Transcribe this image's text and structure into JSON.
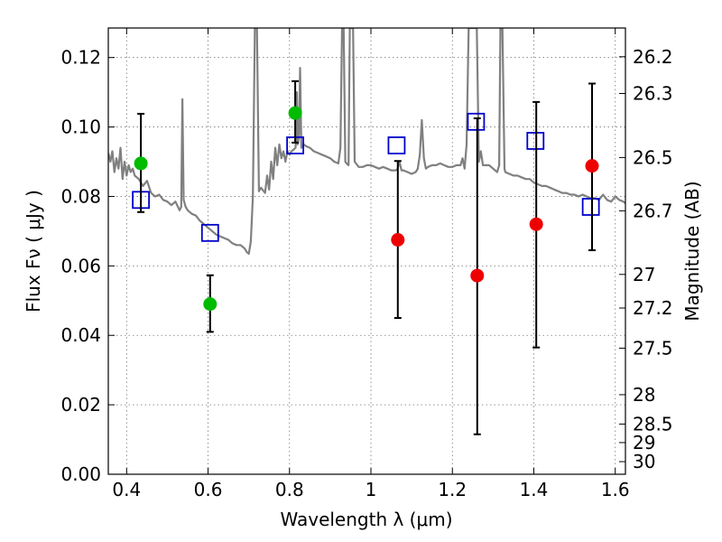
{
  "chart_data": {
    "type": "scatter",
    "xlabel": "Wavelength  λ (μm)",
    "ylabel": "Flux  Fν  ( μJy )",
    "ylabel_right": "Magnitude (AB)",
    "xlim": [
      0.355,
      1.625
    ],
    "ylim": [
      0.0,
      0.1285
    ],
    "x_ticks": [
      0.4,
      0.6,
      0.8,
      1.0,
      1.2,
      1.4,
      1.6
    ],
    "x_tick_labels": [
      "0.4",
      "0.6",
      "0.8",
      "1",
      "1.2",
      "1.4",
      "1.6"
    ],
    "y_ticks": [
      0.0,
      0.02,
      0.04,
      0.06,
      0.08,
      0.1,
      0.12
    ],
    "y_tick_labels": [
      "0.00",
      "0.02",
      "0.04",
      "0.06",
      "0.08",
      "0.10",
      "0.12"
    ],
    "mag_ticks": [
      {
        "mag": 26.2,
        "label": "26.2"
      },
      {
        "mag": 26.3,
        "label": "26.3"
      },
      {
        "mag": 26.5,
        "label": "26.5"
      },
      {
        "mag": 26.7,
        "label": "26.7"
      },
      {
        "mag": 27.0,
        "label": "27"
      },
      {
        "mag": 27.2,
        "label": "27.2"
      },
      {
        "mag": 27.5,
        "label": "27.5"
      },
      {
        "mag": 28.0,
        "label": "28"
      },
      {
        "mag": 28.5,
        "label": "28.5"
      },
      {
        "mag": 29.0,
        "label": "29"
      },
      {
        "mag": 30.0,
        "label": "30"
      }
    ],
    "grid": true,
    "series": [
      {
        "kind": "line",
        "color": "#808080",
        "points": [
          [
            0.355,
            0.0925
          ],
          [
            0.36,
            0.09
          ],
          [
            0.365,
            0.093
          ],
          [
            0.37,
            0.087
          ],
          [
            0.375,
            0.091
          ],
          [
            0.38,
            0.088
          ],
          [
            0.385,
            0.094
          ],
          [
            0.39,
            0.085
          ],
          [
            0.395,
            0.09
          ],
          [
            0.4,
            0.086
          ],
          [
            0.405,
            0.089
          ],
          [
            0.41,
            0.087
          ],
          [
            0.415,
            0.088
          ],
          [
            0.42,
            0.086
          ],
          [
            0.43,
            0.085
          ],
          [
            0.44,
            0.083
          ],
          [
            0.45,
            0.0845
          ],
          [
            0.46,
            0.081
          ],
          [
            0.47,
            0.08
          ],
          [
            0.48,
            0.0805
          ],
          [
            0.49,
            0.079
          ],
          [
            0.5,
            0.0785
          ],
          [
            0.51,
            0.0775
          ],
          [
            0.52,
            0.0785
          ],
          [
            0.53,
            0.076
          ],
          [
            0.534,
            0.077
          ],
          [
            0.537,
            0.108
          ],
          [
            0.54,
            0.079
          ],
          [
            0.545,
            0.077
          ],
          [
            0.55,
            0.076
          ],
          [
            0.56,
            0.075
          ],
          [
            0.57,
            0.0745
          ],
          [
            0.58,
            0.073
          ],
          [
            0.59,
            0.072
          ],
          [
            0.6,
            0.071
          ],
          [
            0.61,
            0.07
          ],
          [
            0.62,
            0.069
          ],
          [
            0.63,
            0.0685
          ],
          [
            0.64,
            0.068
          ],
          [
            0.65,
            0.0675
          ],
          [
            0.66,
            0.0665
          ],
          [
            0.67,
            0.066
          ],
          [
            0.68,
            0.066
          ],
          [
            0.69,
            0.065
          ],
          [
            0.695,
            0.064
          ],
          [
            0.7,
            0.0635
          ],
          [
            0.705,
            0.067
          ],
          [
            0.71,
            0.08
          ],
          [
            0.715,
            0.1285
          ],
          [
            0.72,
            0.1285
          ],
          [
            0.725,
            0.0815
          ],
          [
            0.73,
            0.0825
          ],
          [
            0.74,
            0.081
          ],
          [
            0.745,
            0.086
          ],
          [
            0.75,
            0.082
          ],
          [
            0.755,
            0.09
          ],
          [
            0.76,
            0.085
          ],
          [
            0.765,
            0.094
          ],
          [
            0.77,
            0.089
          ],
          [
            0.775,
            0.095
          ],
          [
            0.78,
            0.091
          ],
          [
            0.785,
            0.093
          ],
          [
            0.79,
            0.09
          ],
          [
            0.795,
            0.093
          ],
          [
            0.8,
            0.092
          ],
          [
            0.805,
            0.093
          ],
          [
            0.81,
            0.0935
          ],
          [
            0.815,
            0.094
          ],
          [
            0.818,
            0.11
          ],
          [
            0.82,
            0.095
          ],
          [
            0.823,
            0.097
          ],
          [
            0.826,
            0.117
          ],
          [
            0.829,
            0.094
          ],
          [
            0.835,
            0.095
          ],
          [
            0.84,
            0.0945
          ],
          [
            0.85,
            0.094
          ],
          [
            0.86,
            0.093
          ],
          [
            0.87,
            0.0925
          ],
          [
            0.88,
            0.092
          ],
          [
            0.89,
            0.0915
          ],
          [
            0.9,
            0.091
          ],
          [
            0.91,
            0.09
          ],
          [
            0.92,
            0.0895
          ],
          [
            0.925,
            0.094
          ],
          [
            0.929,
            0.1285
          ],
          [
            0.933,
            0.1285
          ],
          [
            0.937,
            0.09
          ],
          [
            0.94,
            0.0895
          ],
          [
            0.945,
            0.089
          ],
          [
            0.948,
            0.1285
          ],
          [
            0.952,
            0.1285
          ],
          [
            0.956,
            0.1285
          ],
          [
            0.96,
            0.09
          ],
          [
            0.97,
            0.0885
          ],
          [
            0.98,
            0.0885
          ],
          [
            0.99,
            0.089
          ],
          [
            1.0,
            0.089
          ],
          [
            1.01,
            0.0885
          ],
          [
            1.02,
            0.088
          ],
          [
            1.03,
            0.0885
          ],
          [
            1.04,
            0.088
          ],
          [
            1.05,
            0.0875
          ],
          [
            1.06,
            0.0875
          ],
          [
            1.065,
            0.0878
          ],
          [
            1.07,
            0.09
          ],
          [
            1.075,
            0.0875
          ],
          [
            1.08,
            0.0875
          ],
          [
            1.09,
            0.087
          ],
          [
            1.1,
            0.0865
          ],
          [
            1.11,
            0.087
          ],
          [
            1.115,
            0.088
          ],
          [
            1.12,
            0.092
          ],
          [
            1.125,
            0.102
          ],
          [
            1.13,
            0.091
          ],
          [
            1.135,
            0.088
          ],
          [
            1.14,
            0.0885
          ],
          [
            1.15,
            0.089
          ],
          [
            1.16,
            0.089
          ],
          [
            1.17,
            0.0895
          ],
          [
            1.18,
            0.089
          ],
          [
            1.19,
            0.0885
          ],
          [
            1.2,
            0.0885
          ],
          [
            1.21,
            0.089
          ],
          [
            1.22,
            0.089
          ],
          [
            1.225,
            0.091
          ],
          [
            1.23,
            0.088
          ],
          [
            1.235,
            0.095
          ],
          [
            1.24,
            0.1285
          ],
          [
            1.25,
            0.1285
          ],
          [
            1.255,
            0.1285
          ],
          [
            1.26,
            0.1285
          ],
          [
            1.265,
            0.09
          ],
          [
            1.27,
            0.093
          ],
          [
            1.275,
            0.089
          ],
          [
            1.28,
            0.089
          ],
          [
            1.29,
            0.089
          ],
          [
            1.3,
            0.088
          ],
          [
            1.31,
            0.087
          ],
          [
            1.315,
            0.089
          ],
          [
            1.318,
            0.1285
          ],
          [
            1.323,
            0.1285
          ],
          [
            1.328,
            0.088
          ],
          [
            1.33,
            0.087
          ],
          [
            1.34,
            0.0865
          ],
          [
            1.35,
            0.086
          ],
          [
            1.36,
            0.086
          ],
          [
            1.37,
            0.0855
          ],
          [
            1.38,
            0.085
          ],
          [
            1.39,
            0.085
          ],
          [
            1.4,
            0.084
          ],
          [
            1.41,
            0.0835
          ],
          [
            1.42,
            0.083
          ],
          [
            1.43,
            0.083
          ],
          [
            1.44,
            0.0825
          ],
          [
            1.45,
            0.082
          ],
          [
            1.46,
            0.0815
          ],
          [
            1.47,
            0.081
          ],
          [
            1.48,
            0.081
          ],
          [
            1.49,
            0.0805
          ],
          [
            1.5,
            0.0805
          ],
          [
            1.51,
            0.08
          ],
          [
            1.52,
            0.0805
          ],
          [
            1.53,
            0.08
          ],
          [
            1.54,
            0.0795
          ],
          [
            1.55,
            0.0795
          ],
          [
            1.56,
            0.079
          ],
          [
            1.57,
            0.0805
          ],
          [
            1.58,
            0.079
          ],
          [
            1.59,
            0.0785
          ],
          [
            1.6,
            0.08
          ],
          [
            1.61,
            0.079
          ],
          [
            1.62,
            0.0785
          ],
          [
            1.625,
            0.078
          ]
        ]
      },
      {
        "kind": "open-square",
        "color": "#0000cc",
        "points": [
          {
            "x": 0.435,
            "y": 0.079
          },
          {
            "x": 0.605,
            "y": 0.0695
          },
          {
            "x": 0.814,
            "y": 0.0947
          },
          {
            "x": 1.063,
            "y": 0.0947
          },
          {
            "x": 1.258,
            "y": 0.1015
          },
          {
            "x": 1.404,
            "y": 0.096
          },
          {
            "x": 1.54,
            "y": 0.077
          }
        ]
      },
      {
        "kind": "filled-circle",
        "color": "#00bb00",
        "points": [
          {
            "x": 0.435,
            "y": 0.0895,
            "err_low": 0.0755,
            "err_high": 0.1038
          },
          {
            "x": 0.605,
            "y": 0.049,
            "err_low": 0.041,
            "err_high": 0.0573
          },
          {
            "x": 0.814,
            "y": 0.104,
            "err_low": 0.0955,
            "err_high": 0.1132
          }
        ]
      },
      {
        "kind": "filled-circle",
        "color": "#ee0000",
        "points": [
          {
            "x": 1.066,
            "y": 0.0675,
            "err_low": 0.045,
            "err_high": 0.0902
          },
          {
            "x": 1.261,
            "y": 0.0572,
            "err_low": 0.0115,
            "err_high": 0.1025
          },
          {
            "x": 1.406,
            "y": 0.072,
            "err_low": 0.0365,
            "err_high": 0.1072
          },
          {
            "x": 1.543,
            "y": 0.0888,
            "err_low": 0.0645,
            "err_high": 0.1125
          }
        ]
      }
    ]
  }
}
